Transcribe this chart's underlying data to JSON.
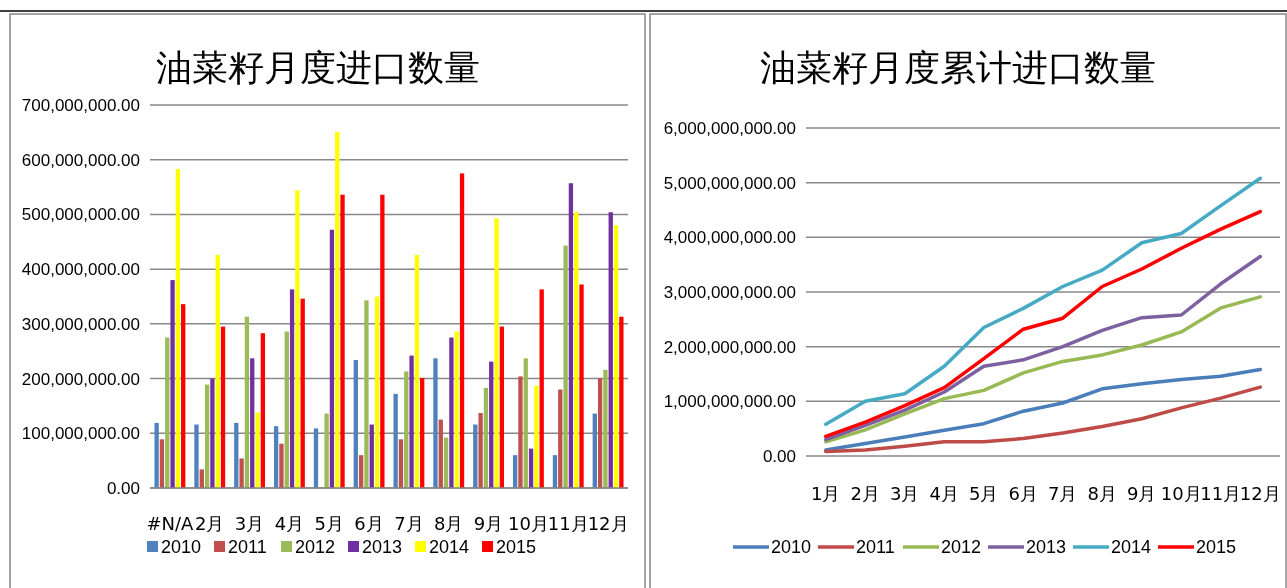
{
  "chart_data": [
    {
      "type": "bar",
      "title": "油菜籽月度进口数量",
      "categories": [
        "#N/A",
        "2月",
        "3月",
        "4月",
        "5月",
        "6月",
        "7月",
        "8月",
        "9月",
        "10月",
        "11月",
        "12月"
      ],
      "ylim": [
        0,
        700000000
      ],
      "yticks": [
        {
          "value": 0,
          "label": "0.00"
        },
        {
          "value": 100000000,
          "label": "100,000,000.00"
        },
        {
          "value": 200000000,
          "label": "200,000,000.00"
        },
        {
          "value": 300000000,
          "label": "300,000,000.00"
        },
        {
          "value": 400000000,
          "label": "400,000,000.00"
        },
        {
          "value": 500000000,
          "label": "500,000,000.00"
        },
        {
          "value": 600000000,
          "label": "600,000,000.00"
        },
        {
          "value": 700000000,
          "label": "700,000,000.00"
        }
      ],
      "grid": "y",
      "legend": "bottom left",
      "series": [
        {
          "name": "2010",
          "color": "#4f81bd",
          "values": [
            119000000,
            116000000,
            119000000,
            113000000,
            109000000,
            234000000,
            172000000,
            237000000,
            116000000,
            60000000,
            60000000,
            136000000
          ]
        },
        {
          "name": "2011",
          "color": "#c0504d",
          "values": [
            89000000,
            34000000,
            54000000,
            81000000,
            0,
            60000000,
            89000000,
            125000000,
            137000000,
            204000000,
            180000000,
            201000000
          ]
        },
        {
          "name": "2012",
          "color": "#9bbb59",
          "values": [
            275000000,
            189000000,
            313000000,
            286000000,
            136000000,
            343000000,
            213000000,
            92000000,
            183000000,
            237000000,
            443000000,
            216000000
          ]
        },
        {
          "name": "2013",
          "color": "#7030a0",
          "values": [
            380000000,
            200000000,
            237000000,
            363000000,
            472000000,
            116000000,
            242000000,
            275000000,
            231000000,
            72000000,
            557000000,
            504000000
          ]
        },
        {
          "name": "2014",
          "color": "#ffff00",
          "values": [
            583000000,
            426000000,
            138000000,
            544000000,
            651000000,
            350000000,
            426000000,
            286000000,
            493000000,
            187000000,
            504000000,
            480000000
          ]
        },
        {
          "name": "2015",
          "color": "#ff0000",
          "values": [
            336000000,
            295000000,
            283000000,
            346000000,
            536000000,
            536000000,
            201000000,
            575000000,
            295000000,
            363000000,
            372000000,
            313000000
          ]
        }
      ]
    },
    {
      "type": "line",
      "title": "油菜籽月度累计进口数量",
      "categories": [
        "1月",
        "2月",
        "3月",
        "4月",
        "5月",
        "6月",
        "7月",
        "8月",
        "9月",
        "10月",
        "11月",
        "12月"
      ],
      "ylim": [
        0,
        6000000000
      ],
      "yticks": [
        {
          "value": 0,
          "label": "0.00"
        },
        {
          "value": 1000000000,
          "label": "1,000,000,000.00"
        },
        {
          "value": 2000000000,
          "label": "2,000,000,000.00"
        },
        {
          "value": 3000000000,
          "label": "3,000,000,000.00"
        },
        {
          "value": 4000000000,
          "label": "4,000,000,000.00"
        },
        {
          "value": 5000000000,
          "label": "5,000,000,000.00"
        },
        {
          "value": 6000000000,
          "label": "6,000,000,000.00"
        }
      ],
      "grid": "y",
      "legend": "bottom",
      "marker": "none",
      "line_style": "solid",
      "series": [
        {
          "name": "2010",
          "color": "#4a7ebb",
          "values": [
            110000000,
            230000000,
            350000000,
            470000000,
            590000000,
            820000000,
            970000000,
            1230000000,
            1320000000,
            1400000000,
            1460000000,
            1580000000
          ]
        },
        {
          "name": "2011",
          "color": "#be4b48",
          "values": [
            80000000,
            110000000,
            180000000,
            260000000,
            260000000,
            320000000,
            420000000,
            540000000,
            680000000,
            880000000,
            1060000000,
            1260000000
          ]
        },
        {
          "name": "2012",
          "color": "#98b954",
          "values": [
            260000000,
            480000000,
            770000000,
            1050000000,
            1200000000,
            1520000000,
            1730000000,
            1850000000,
            2030000000,
            2270000000,
            2710000000,
            2910000000
          ]
        },
        {
          "name": "2013",
          "color": "#7d60a0",
          "values": [
            300000000,
            560000000,
            840000000,
            1170000000,
            1640000000,
            1760000000,
            2000000000,
            2300000000,
            2530000000,
            2580000000,
            3150000000,
            3650000000
          ]
        },
        {
          "name": "2014",
          "color": "#46aac5",
          "values": [
            580000000,
            1000000000,
            1140000000,
            1640000000,
            2350000000,
            2700000000,
            3100000000,
            3400000000,
            3900000000,
            4070000000,
            4580000000,
            5080000000
          ]
        },
        {
          "name": "2015",
          "color": "#ff0000",
          "values": [
            360000000,
            620000000,
            920000000,
            1250000000,
            1780000000,
            2320000000,
            2520000000,
            3100000000,
            3420000000,
            3800000000,
            4150000000,
            4470000000
          ]
        }
      ]
    }
  ]
}
